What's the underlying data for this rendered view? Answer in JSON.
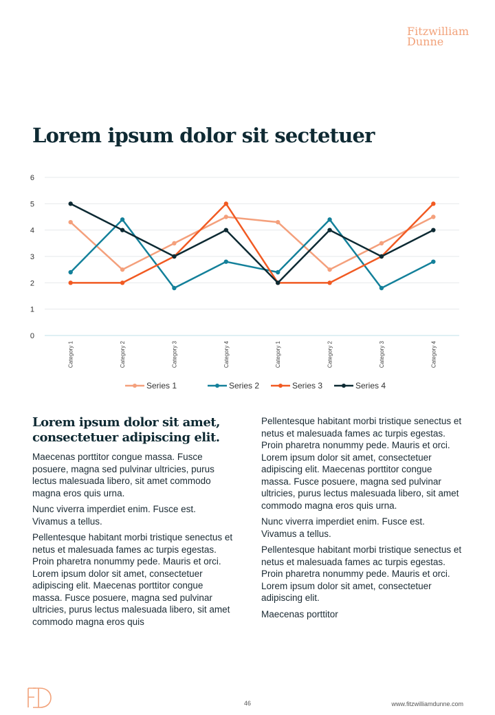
{
  "brand": {
    "line1": "Fitzwilliam",
    "line2": "Dunne"
  },
  "title": "Lorem ipsum dolor sit sectetuer",
  "chart_data": {
    "type": "line",
    "categories": [
      "Category 1",
      "Category 2",
      "Category 3",
      "Category 4",
      "Category 1",
      "Category 2",
      "Category 3",
      "Category 4"
    ],
    "series": [
      {
        "name": "Series 1",
        "color": "#f4a07c",
        "values": [
          4.3,
          2.5,
          3.5,
          4.5,
          4.3,
          2.5,
          3.5,
          4.5
        ]
      },
      {
        "name": "Series 2",
        "color": "#13809a",
        "values": [
          2.4,
          4.4,
          1.8,
          2.8,
          2.4,
          4.4,
          1.8,
          2.8
        ]
      },
      {
        "name": "Series 3",
        "color": "#f15a22",
        "values": [
          2.0,
          2.0,
          3.0,
          5.0,
          2.0,
          2.0,
          3.0,
          5.0
        ]
      },
      {
        "name": "Series 4",
        "color": "#0d2a33",
        "values": [
          5.0,
          4.0,
          3.0,
          4.0,
          2.0,
          4.0,
          3.0,
          4.0
        ]
      }
    ],
    "ylim": [
      0,
      6
    ],
    "yticks": [
      0,
      1,
      2,
      3,
      4,
      5,
      6
    ],
    "grid": true,
    "legend": "bottom"
  },
  "left_column": {
    "heading": "Lorem ipsum dolor sit amet, consectetuer adipiscing elit.",
    "paragraphs": [
      "Maecenas porttitor congue massa. Fusce posuere, magna sed pulvinar ultricies, purus lectus malesuada libero, sit amet commodo magna eros quis urna.",
      "Nunc viverra imperdiet enim. Fusce est. Vivamus a tellus.",
      "Pellentesque habitant morbi tristique senectus et netus et malesuada fames ac turpis egestas. Proin pharetra nonummy pede. Mauris et orci. Lorem ipsum dolor sit amet, consectetuer adipiscing elit. Maecenas porttitor congue massa. Fusce posuere, magna sed pulvinar ultricies, purus lectus malesuada libero, sit amet commodo magna eros quis"
    ]
  },
  "right_column": {
    "paragraphs": [
      "Pellentesque habitant morbi tristique senectus et netus et malesuada fames ac turpis egestas. Proin pharetra nonummy pede. Mauris et orci. Lorem ipsum dolor sit amet, consectetuer adipiscing elit. Maecenas porttitor congue massa. Fusce posuere, magna sed pulvinar ultricies, purus lectus malesuada libero, sit amet commodo magna eros quis urna.",
      "Nunc viverra imperdiet enim. Fusce est. Vivamus a tellus.",
      "Pellentesque habitant morbi tristique senectus et netus et malesuada fames ac turpis egestas. Proin pharetra nonummy pede. Mauris et orci. Lorem ipsum dolor sit amet, consectetuer adipiscing elit.",
      "Maecenas porttitor"
    ]
  },
  "footer": {
    "page_number": "46",
    "url": "www.fitzwilliamdunne.com",
    "logo_icon": "fd-monogram-icon"
  },
  "colors": {
    "accent": "#f2a27a",
    "title": "#0f2a33"
  }
}
